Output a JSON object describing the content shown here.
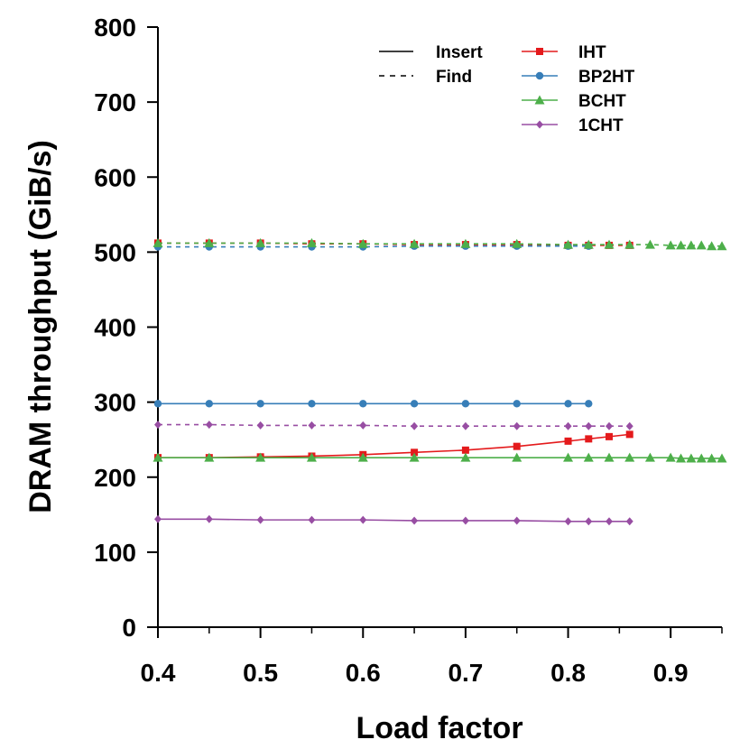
{
  "chart_data": {
    "type": "line",
    "title": "",
    "xlabel": "Load factor",
    "ylabel": "DRAM throughput (GiB/s)",
    "xlim": [
      0.4,
      0.95
    ],
    "ylim": [
      0,
      800
    ],
    "x_ticks": [
      0.4,
      0.5,
      0.6,
      0.7,
      0.8,
      0.9
    ],
    "y_ticks": [
      0,
      100,
      200,
      300,
      400,
      500,
      600,
      700,
      800
    ],
    "x_tick_labels": [
      "0.4",
      "0.5",
      "0.6",
      "0.7",
      "0.8",
      "0.9"
    ],
    "y_tick_labels": [
      "0",
      "100",
      "200",
      "300",
      "400",
      "500",
      "600",
      "700",
      "800"
    ],
    "grid": false,
    "legend_position": "top-right",
    "line_styles": [
      {
        "name": "Insert",
        "dash": "solid"
      },
      {
        "name": "Find",
        "dash": "dashed"
      }
    ],
    "tables": [
      {
        "name": "IHT",
        "color": "#e41a1c",
        "marker": "square"
      },
      {
        "name": "BP2HT",
        "color": "#377eb8",
        "marker": "circle"
      },
      {
        "name": "BCHT",
        "color": "#4daf4a",
        "marker": "triangle"
      },
      {
        "name": "1CHT",
        "color": "#984ea3",
        "marker": "diamond"
      }
    ],
    "series": [
      {
        "table": "IHT",
        "op": "Insert",
        "x": [
          0.4,
          0.45,
          0.5,
          0.55,
          0.6,
          0.65,
          0.7,
          0.75,
          0.8,
          0.82,
          0.84,
          0.86
        ],
        "y": [
          226,
          226,
          227,
          228,
          230,
          233,
          236,
          241,
          248,
          251,
          254,
          257
        ]
      },
      {
        "table": "IHT",
        "op": "Find",
        "x": [
          0.4,
          0.45,
          0.5,
          0.55,
          0.6,
          0.65,
          0.7,
          0.75,
          0.8,
          0.82,
          0.84,
          0.86
        ],
        "y": [
          512,
          512,
          512,
          511,
          511,
          510,
          510,
          510,
          509,
          509,
          509,
          509
        ]
      },
      {
        "table": "BP2HT",
        "op": "Insert",
        "x": [
          0.4,
          0.45,
          0.5,
          0.55,
          0.6,
          0.65,
          0.7,
          0.75,
          0.8,
          0.82
        ],
        "y": [
          298,
          298,
          298,
          298,
          298,
          298,
          298,
          298,
          298,
          298
        ]
      },
      {
        "table": "BP2HT",
        "op": "Find",
        "x": [
          0.4,
          0.45,
          0.5,
          0.55,
          0.6,
          0.65,
          0.7,
          0.75,
          0.8,
          0.82
        ],
        "y": [
          507,
          507,
          507,
          507,
          507,
          508,
          508,
          508,
          508,
          508
        ]
      },
      {
        "table": "BCHT",
        "op": "Insert",
        "x": [
          0.4,
          0.45,
          0.5,
          0.55,
          0.6,
          0.65,
          0.7,
          0.75,
          0.8,
          0.82,
          0.84,
          0.86,
          0.88,
          0.9,
          0.91,
          0.92,
          0.93,
          0.94,
          0.95
        ],
        "y": [
          226,
          226,
          226,
          226,
          226,
          226,
          226,
          226,
          226,
          226,
          226,
          226,
          226,
          226,
          225,
          225,
          225,
          225,
          225
        ]
      },
      {
        "table": "BCHT",
        "op": "Find",
        "x": [
          0.4,
          0.45,
          0.5,
          0.55,
          0.6,
          0.65,
          0.7,
          0.75,
          0.8,
          0.82,
          0.84,
          0.86,
          0.88,
          0.9,
          0.91,
          0.92,
          0.93,
          0.94,
          0.95
        ],
        "y": [
          512,
          512,
          512,
          512,
          511,
          511,
          511,
          511,
          510,
          510,
          510,
          510,
          510,
          509,
          509,
          509,
          509,
          508,
          508
        ]
      },
      {
        "table": "1CHT",
        "op": "Insert",
        "x": [
          0.4,
          0.45,
          0.5,
          0.55,
          0.6,
          0.65,
          0.7,
          0.75,
          0.8,
          0.82,
          0.84,
          0.86
        ],
        "y": [
          144,
          144,
          143,
          143,
          143,
          142,
          142,
          142,
          141,
          141,
          141,
          141
        ]
      },
      {
        "table": "1CHT",
        "op": "Find",
        "x": [
          0.4,
          0.45,
          0.5,
          0.55,
          0.6,
          0.65,
          0.7,
          0.75,
          0.8,
          0.82,
          0.84,
          0.86
        ],
        "y": [
          270,
          270,
          269,
          269,
          269,
          268,
          268,
          268,
          268,
          268,
          268,
          268
        ]
      }
    ]
  }
}
